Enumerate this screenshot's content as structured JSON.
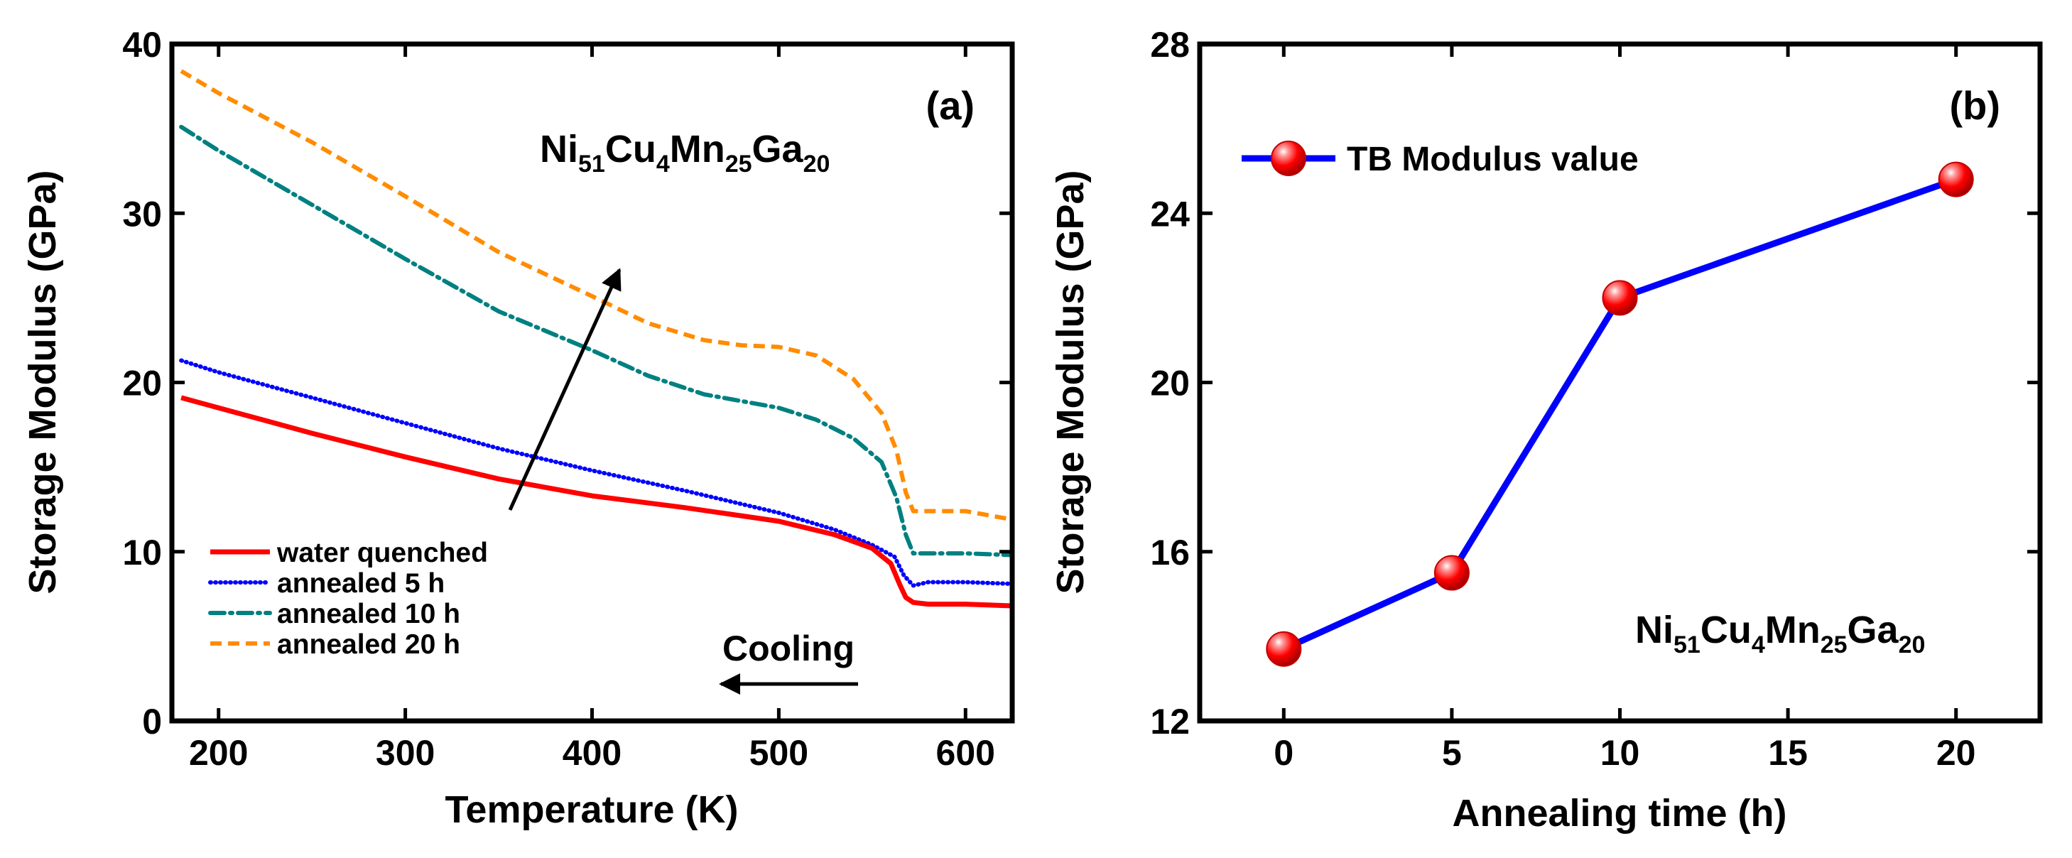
{
  "chart_data": [
    {
      "type": "line",
      "panel_label": "(a)",
      "xlabel": "Temperature (K)",
      "ylabel": "Storage Modulus (GPa)",
      "xlim": [
        175,
        625
      ],
      "ylim": [
        0,
        40
      ],
      "xticks": [
        "200",
        "300",
        "400",
        "500",
        "600"
      ],
      "yticks": [
        "0",
        "10",
        "20",
        "30",
        "40"
      ],
      "composition": {
        "el1": "Ni",
        "n1": "51",
        "el2": "Cu",
        "n2": "4",
        "el3": "Mn",
        "n3": "25",
        "el4": "Ga",
        "n4": "20"
      },
      "annotation": "Cooling",
      "legend_position": "bottom-left",
      "series": [
        {
          "name": "water quenched",
          "color": "#ff0000",
          "style": "solid",
          "x": [
            180,
            200,
            250,
            300,
            350,
            400,
            450,
            500,
            530,
            550,
            560,
            565,
            568,
            572,
            580,
            600,
            625
          ],
          "values": [
            19.1,
            18.5,
            17.0,
            15.6,
            14.3,
            13.3,
            12.6,
            11.8,
            11.0,
            10.2,
            9.3,
            8.0,
            7.3,
            7.0,
            6.9,
            6.9,
            6.8
          ]
        },
        {
          "name": "annealed 5 h",
          "color": "#0000ff",
          "style": "dotted",
          "x": [
            180,
            200,
            250,
            300,
            350,
            400,
            450,
            500,
            530,
            550,
            562,
            567,
            572,
            580,
            600,
            625
          ],
          "values": [
            21.3,
            20.6,
            19.1,
            17.6,
            16.1,
            14.8,
            13.6,
            12.3,
            11.3,
            10.4,
            9.7,
            8.6,
            8.0,
            8.2,
            8.2,
            8.1
          ]
        },
        {
          "name": "annealed 10 h",
          "color": "#008080",
          "style": "dashdot",
          "x": [
            180,
            200,
            250,
            300,
            350,
            400,
            430,
            460,
            500,
            520,
            540,
            555,
            563,
            568,
            572,
            578,
            600,
            625
          ],
          "values": [
            35.1,
            33.7,
            30.5,
            27.3,
            24.2,
            21.9,
            20.4,
            19.3,
            18.5,
            17.8,
            16.7,
            15.3,
            13.2,
            11.0,
            9.9,
            9.9,
            9.9,
            9.8
          ]
        },
        {
          "name": "annealed 20 h",
          "color": "#ff8c00",
          "style": "dashed",
          "x": [
            180,
            200,
            250,
            300,
            350,
            400,
            430,
            460,
            480,
            500,
            520,
            540,
            555,
            563,
            568,
            572,
            578,
            600,
            625
          ],
          "values": [
            38.4,
            37.1,
            34.2,
            31.0,
            27.7,
            25.1,
            23.5,
            22.5,
            22.2,
            22.1,
            21.6,
            20.2,
            18.2,
            16.0,
            13.5,
            12.4,
            12.4,
            12.4,
            11.9
          ]
        }
      ]
    },
    {
      "type": "line",
      "panel_label": "(b)",
      "xlabel": "Annealing time (h)",
      "ylabel": "Storage Modulus (GPa)",
      "xlim": [
        -2.5,
        22.5
      ],
      "ylim": [
        12,
        28
      ],
      "xticks": [
        "0",
        "5",
        "10",
        "15",
        "20"
      ],
      "yticks": [
        "12",
        "16",
        "20",
        "24",
        "28"
      ],
      "composition": {
        "el1": "Ni",
        "n1": "51",
        "el2": "Cu",
        "n2": "4",
        "el3": "Mn",
        "n3": "25",
        "el4": "Ga",
        "n4": "20"
      },
      "legend_position": "top-left",
      "series": [
        {
          "name": "TB Modulus value",
          "color": "#0000ff",
          "marker_color": "#ff0000",
          "x": [
            0,
            5,
            10,
            20
          ],
          "values": [
            13.7,
            15.5,
            22.0,
            24.8
          ]
        }
      ]
    }
  ]
}
